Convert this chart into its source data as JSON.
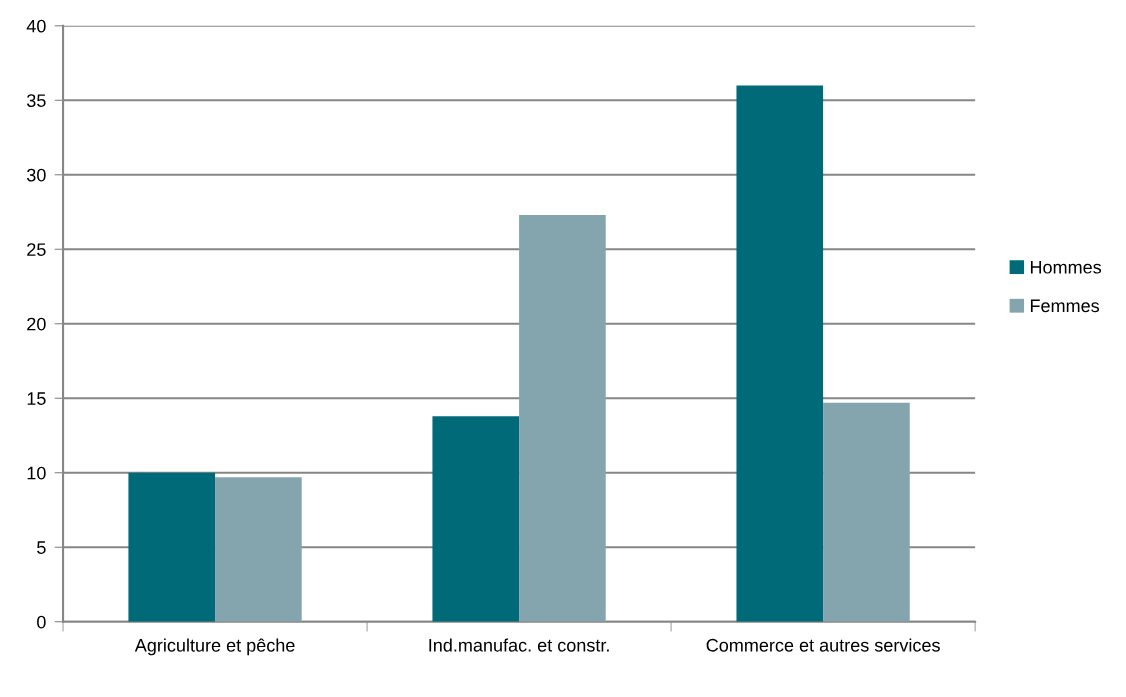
{
  "chart_data": {
    "type": "bar",
    "categories": [
      "Agriculture et pêche",
      "Ind.manufac. et constr.",
      "Commerce et autres services"
    ],
    "series": [
      {
        "name": "Hommes",
        "color": "#006a78",
        "values": [
          10.0,
          13.8,
          36.0
        ]
      },
      {
        "name": "Femmes",
        "color": "#84a5ad",
        "values": [
          9.7,
          27.3,
          14.7
        ]
      }
    ],
    "ylim": [
      0,
      40
    ],
    "yticks": [
      0,
      5,
      10,
      15,
      20,
      25,
      30,
      35,
      40
    ],
    "grid": "y",
    "legend": "right"
  }
}
